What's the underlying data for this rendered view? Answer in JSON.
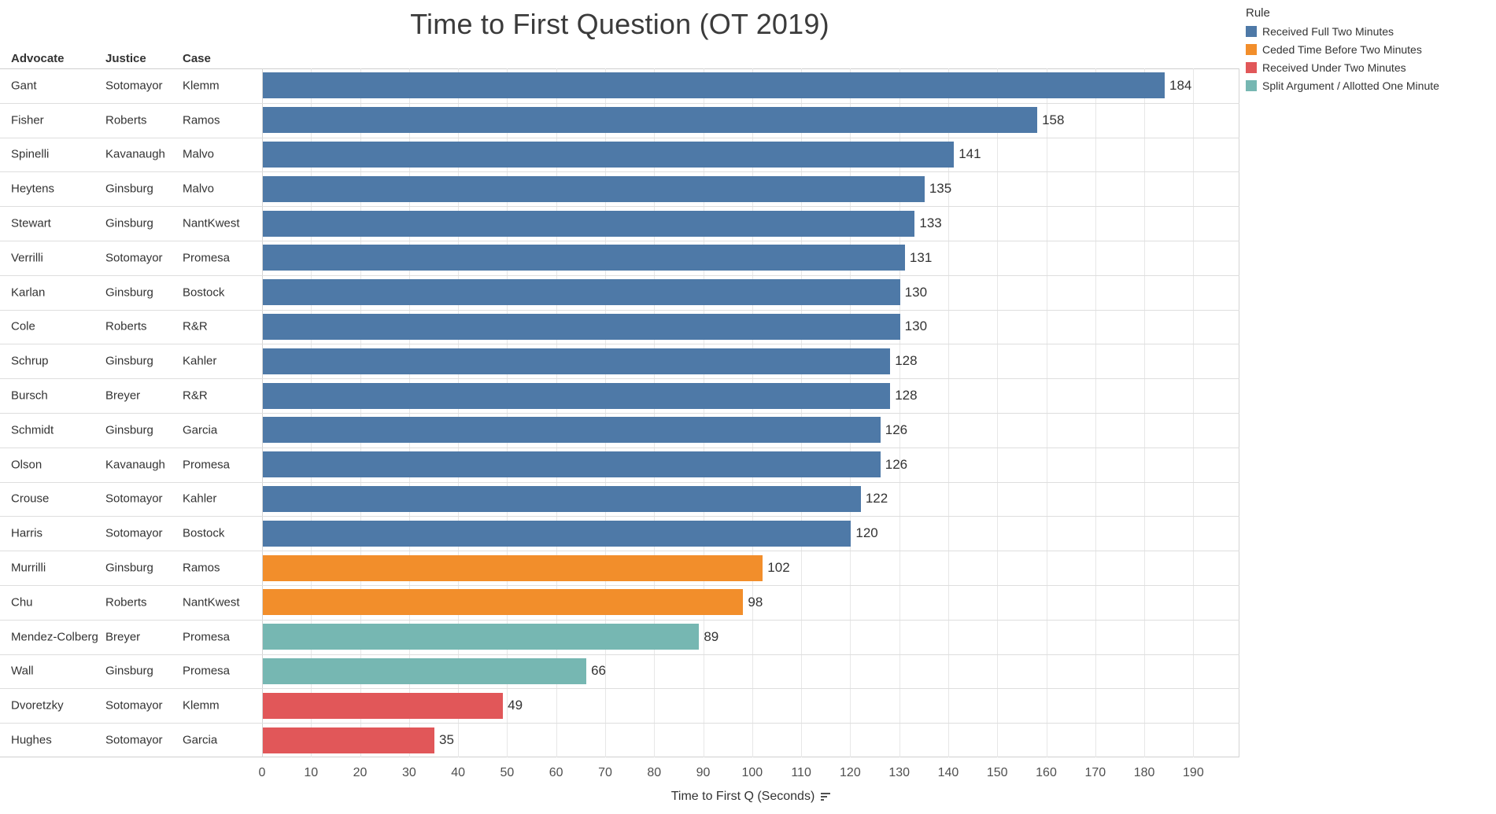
{
  "chart_data": {
    "type": "bar",
    "orientation": "horizontal",
    "title": "Time to First Question (OT 2019)",
    "xlabel": "Time to First Q (Seconds)",
    "xlim": [
      0,
      199
    ],
    "x_ticks": [
      0,
      10,
      20,
      30,
      40,
      50,
      60,
      70,
      80,
      90,
      100,
      110,
      120,
      130,
      140,
      150,
      160,
      170,
      180,
      190
    ],
    "grid": true,
    "legend_position": "top-right",
    "legend_title": "Rule",
    "row_header_columns": [
      "Advocate",
      "Justice",
      "Case"
    ],
    "legend": [
      {
        "label": "Received Full Two Minutes",
        "color": "#4e79a7"
      },
      {
        "label": "Ceded Time Before Two Minutes",
        "color": "#f28e2b"
      },
      {
        "label": "Received Under Two Minutes",
        "color": "#e15759"
      },
      {
        "label": "Split Argument / Allotted One Minute",
        "color": "#76b7b2"
      }
    ],
    "rows": [
      {
        "advocate": "Gant",
        "justice": "Sotomayor",
        "case": "Klemm",
        "value": 184,
        "rule": "Received Full Two Minutes"
      },
      {
        "advocate": "Fisher",
        "justice": "Roberts",
        "case": "Ramos",
        "value": 158,
        "rule": "Received Full Two Minutes"
      },
      {
        "advocate": "Spinelli",
        "justice": "Kavanaugh",
        "case": "Malvo",
        "value": 141,
        "rule": "Received Full Two Minutes"
      },
      {
        "advocate": "Heytens",
        "justice": "Ginsburg",
        "case": "Malvo",
        "value": 135,
        "rule": "Received Full Two Minutes"
      },
      {
        "advocate": "Stewart",
        "justice": "Ginsburg",
        "case": "NantKwest",
        "value": 133,
        "rule": "Received Full Two Minutes"
      },
      {
        "advocate": "Verrilli",
        "justice": "Sotomayor",
        "case": "Promesa",
        "value": 131,
        "rule": "Received Full Two Minutes"
      },
      {
        "advocate": "Karlan",
        "justice": "Ginsburg",
        "case": "Bostock",
        "value": 130,
        "rule": "Received Full Two Minutes"
      },
      {
        "advocate": "Cole",
        "justice": "Roberts",
        "case": "R&R",
        "value": 130,
        "rule": "Received Full Two Minutes"
      },
      {
        "advocate": "Schrup",
        "justice": "Ginsburg",
        "case": "Kahler",
        "value": 128,
        "rule": "Received Full Two Minutes"
      },
      {
        "advocate": "Bursch",
        "justice": "Breyer",
        "case": "R&R",
        "value": 128,
        "rule": "Received Full Two Minutes"
      },
      {
        "advocate": "Schmidt",
        "justice": "Ginsburg",
        "case": "Garcia",
        "value": 126,
        "rule": "Received Full Two Minutes"
      },
      {
        "advocate": "Olson",
        "justice": "Kavanaugh",
        "case": "Promesa",
        "value": 126,
        "rule": "Received Full Two Minutes"
      },
      {
        "advocate": "Crouse",
        "justice": "Sotomayor",
        "case": "Kahler",
        "value": 122,
        "rule": "Received Full Two Minutes"
      },
      {
        "advocate": "Harris",
        "justice": "Sotomayor",
        "case": "Bostock",
        "value": 120,
        "rule": "Received Full Two Minutes"
      },
      {
        "advocate": "Murrilli",
        "justice": "Ginsburg",
        "case": "Ramos",
        "value": 102,
        "rule": "Ceded Time Before Two Minutes"
      },
      {
        "advocate": "Chu",
        "justice": "Roberts",
        "case": "NantKwest",
        "value": 98,
        "rule": "Ceded Time Before Two Minutes"
      },
      {
        "advocate": "Mendez-Colberg",
        "justice": "Breyer",
        "case": "Promesa",
        "value": 89,
        "rule": "Split Argument / Allotted One Minute"
      },
      {
        "advocate": "Wall",
        "justice": "Ginsburg",
        "case": "Promesa",
        "value": 66,
        "rule": "Split Argument / Allotted One Minute"
      },
      {
        "advocate": "Dvoretzky",
        "justice": "Sotomayor",
        "case": "Klemm",
        "value": 49,
        "rule": "Received Under Two Minutes"
      },
      {
        "advocate": "Hughes",
        "justice": "Sotomayor",
        "case": "Garcia",
        "value": 35,
        "rule": "Received Under Two Minutes"
      }
    ]
  }
}
